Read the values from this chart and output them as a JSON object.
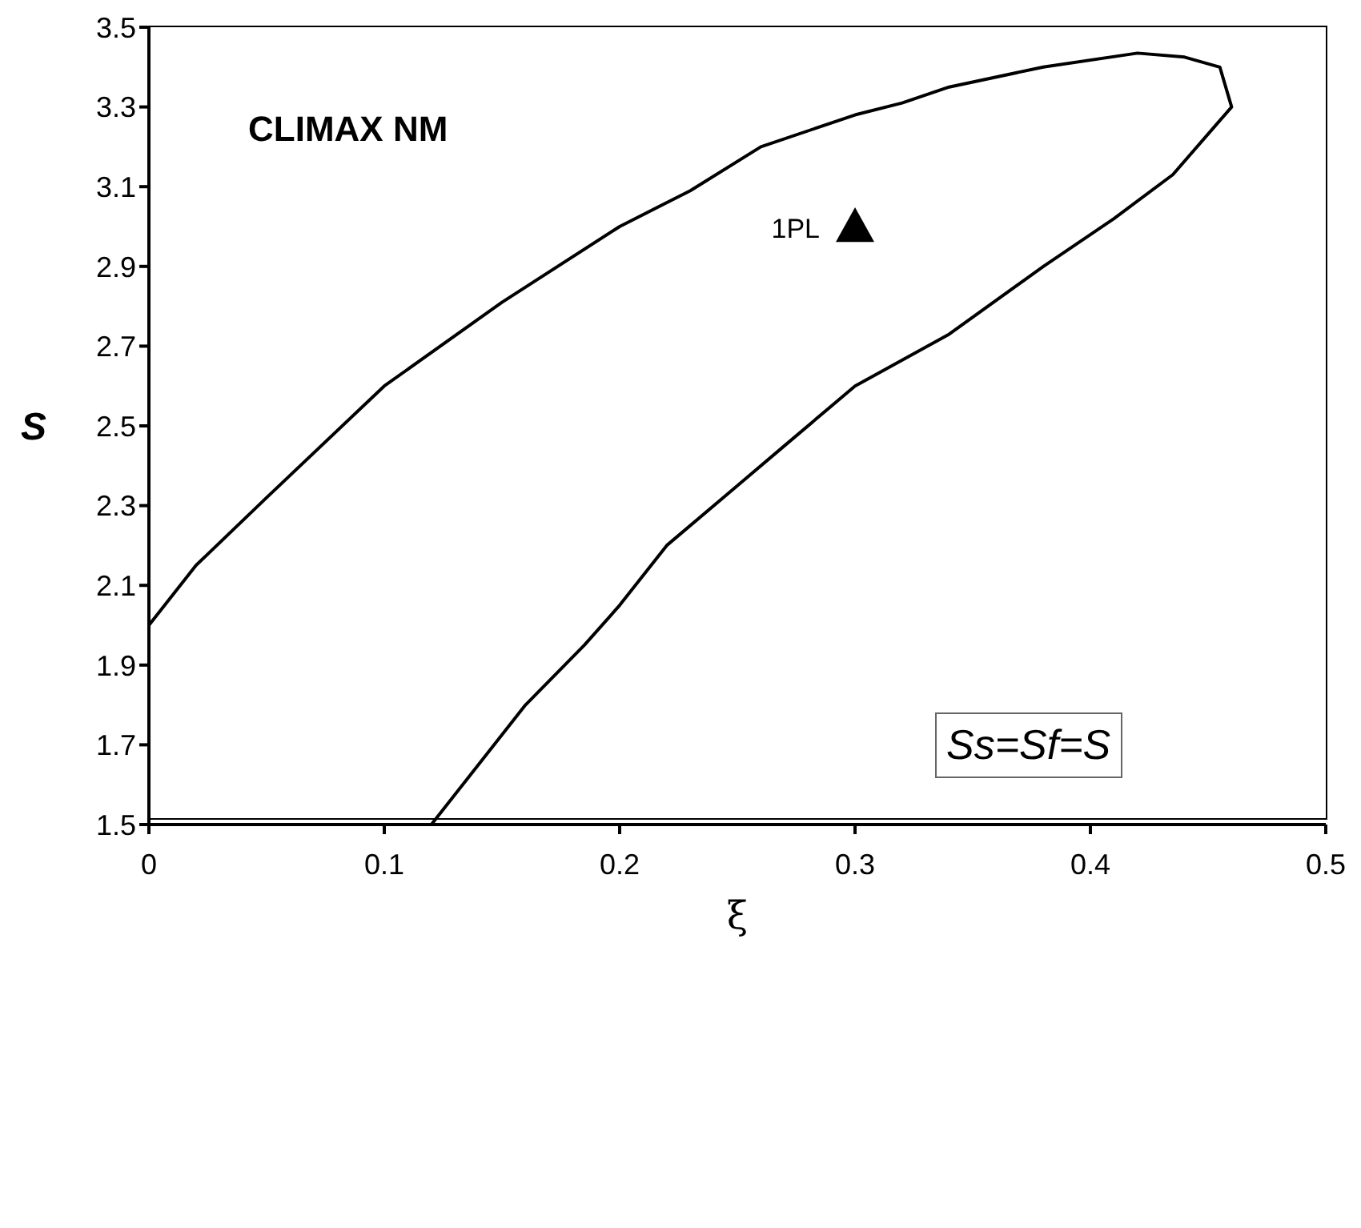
{
  "chart_data": {
    "type": "line",
    "xlabel": "ξ",
    "ylabel": "S",
    "annotations": [
      "CLIMAX NM",
      "Ss=Sf=S"
    ],
    "xlim": [
      0,
      0.5
    ],
    "xticks": [
      0,
      0.1,
      0.2,
      0.3,
      0.4,
      0.5
    ],
    "ylim": [
      1.5,
      3.5
    ],
    "yticks": [
      1.5,
      1.7,
      1.9,
      2.1,
      2.3,
      2.5,
      2.7,
      2.9,
      3.1,
      3.3,
      3.5
    ],
    "grid": false,
    "legend": false,
    "series": [
      {
        "color": "#000000",
        "marker": "none",
        "x": [
          0,
          0.02,
          0.05,
          0.1,
          0.15,
          0.2,
          0.23,
          0.26,
          0.3,
          0.32,
          0.34,
          0.38,
          0.42,
          0.44,
          0.455,
          0.46,
          0.435,
          0.41,
          0.38,
          0.34,
          0.3,
          0.27,
          0.25,
          0.22,
          0.2,
          0.185,
          0.16,
          0.12
        ],
        "values": [
          2.0,
          2.15,
          2.32,
          2.6,
          2.81,
          3.0,
          3.09,
          3.2,
          3.28,
          3.31,
          3.35,
          3.4,
          3.435,
          3.425,
          3.4,
          3.3,
          3.13,
          3.02,
          2.9,
          2.73,
          2.6,
          2.45,
          2.35,
          2.2,
          2.05,
          1.95,
          1.8,
          1.5
        ]
      },
      {
        "type": "scatter",
        "name": "1PL",
        "color": "#000000",
        "marker": "triangle",
        "x": [
          0.3
        ],
        "values": [
          3.0
        ]
      }
    ]
  }
}
